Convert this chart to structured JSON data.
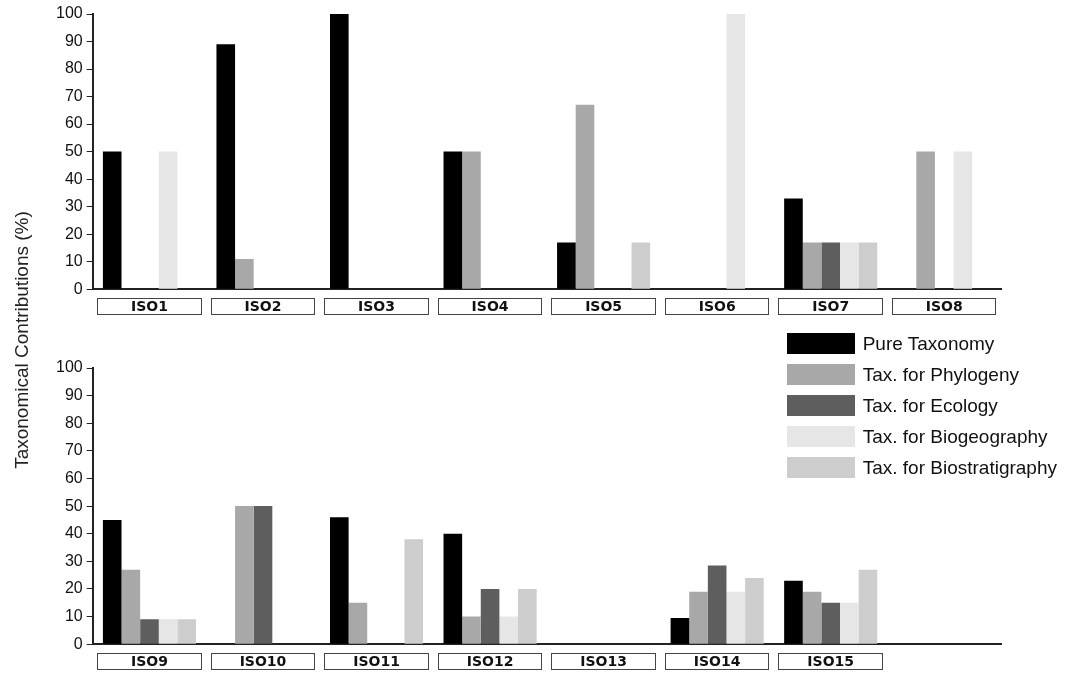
{
  "chart_data": [
    {
      "type": "bar",
      "ylabel": "Taxonomical Contributions (%)",
      "categories": [
        "ISO1",
        "ISO2",
        "ISO3",
        "ISO4",
        "ISO5",
        "ISO6",
        "ISO7",
        "ISO8"
      ],
      "ylim": [
        0,
        100
      ],
      "yticks": [
        0,
        10,
        20,
        30,
        40,
        50,
        60,
        70,
        80,
        90,
        100
      ],
      "series": [
        {
          "color": "#000000",
          "values": [
            50,
            89,
            100,
            50,
            17,
            0,
            33,
            0
          ]
        },
        {
          "color": "#a8a8a8",
          "values": [
            0,
            11,
            0,
            50,
            67,
            0,
            17,
            50
          ]
        },
        {
          "color": "#5e5e5e",
          "values": [
            0,
            0,
            0,
            0,
            0,
            0,
            17,
            0
          ]
        },
        {
          "color": "#e6e6e6",
          "values": [
            50,
            0,
            0,
            0,
            0,
            100,
            17,
            50
          ]
        },
        {
          "color": "#cdcdcd",
          "values": [
            0,
            0,
            0,
            0,
            17,
            0,
            17,
            0
          ]
        }
      ]
    },
    {
      "type": "bar",
      "categories": [
        "ISO9",
        "ISO10",
        "ISO11",
        "ISO12",
        "ISO13",
        "ISO14",
        "ISO15",
        null
      ],
      "ylim": [
        0,
        100
      ],
      "yticks": [
        0,
        10,
        20,
        30,
        40,
        50,
        60,
        70,
        80,
        90,
        100
      ],
      "legend": "top right",
      "series": [
        {
          "name": "Pure Taxonomy",
          "color": "#000000",
          "values": [
            45,
            0,
            46,
            40,
            0,
            9.5,
            23,
            0
          ]
        },
        {
          "name": "Tax. for Phylogeny",
          "color": "#a8a8a8",
          "values": [
            27,
            50,
            15,
            10,
            0,
            19,
            19,
            0
          ]
        },
        {
          "name": "Tax. for Ecology",
          "color": "#5e5e5e",
          "values": [
            9,
            50,
            0,
            20,
            0,
            28.5,
            15,
            0
          ]
        },
        {
          "name": "Tax. for Biogeography",
          "color": "#e6e6e6",
          "values": [
            9,
            0,
            0,
            10,
            0,
            19,
            15,
            0
          ]
        },
        {
          "name": "Tax. for Biostratigraphy",
          "color": "#cdcdcd",
          "values": [
            9,
            0,
            38,
            20,
            0,
            24,
            27,
            0
          ]
        }
      ]
    }
  ]
}
